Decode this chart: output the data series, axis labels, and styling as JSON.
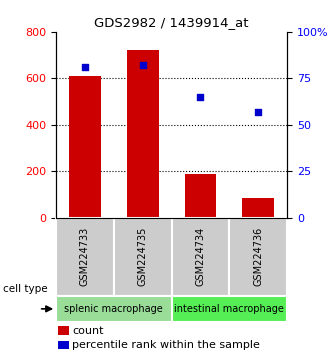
{
  "title": "GDS2982 / 1439914_at",
  "samples": [
    "GSM224733",
    "GSM224735",
    "GSM224734",
    "GSM224736"
  ],
  "counts": [
    610,
    720,
    190,
    85
  ],
  "percentile_ranks": [
    81,
    82,
    65,
    57
  ],
  "cell_types": [
    {
      "label": "splenic macrophage",
      "samples": [
        0,
        1
      ],
      "color": "#99dd99"
    },
    {
      "label": "intestinal macrophage",
      "samples": [
        2,
        3
      ],
      "color": "#55ee55"
    }
  ],
  "ylim_left": [
    0,
    800
  ],
  "ylim_right": [
    0,
    100
  ],
  "yticks_left": [
    0,
    200,
    400,
    600,
    800
  ],
  "yticks_right": [
    0,
    25,
    50,
    75,
    100
  ],
  "ytick_labels_right": [
    "0",
    "25",
    "50",
    "75",
    "100%"
  ],
  "bar_color": "#cc0000",
  "dot_color": "#0000cc",
  "sample_bg_color": "#cccccc",
  "legend_count_label": "count",
  "legend_pct_label": "percentile rank within the sample",
  "cell_type_label": "cell type"
}
